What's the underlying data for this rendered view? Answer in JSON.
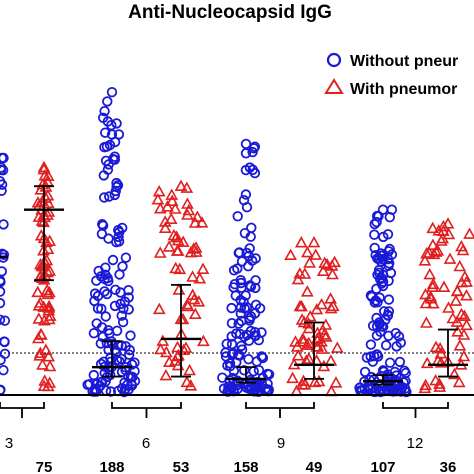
{
  "chart_data": {
    "type": "scatter",
    "title": "Anti-Nucleocapsid IgG",
    "legend": [
      {
        "name": "Without pneur",
        "marker": "circle",
        "color": "#1a1ad6"
      },
      {
        "name": "With pneumor",
        "marker": "triangle",
        "color": "#e02020"
      }
    ],
    "legend_position": "top-right",
    "threshold_line": "dotted",
    "groups": [
      {
        "time_label": "3",
        "without_n": "",
        "with_n": "75"
      },
      {
        "time_label": "6",
        "without_n": "188",
        "with_n": "53"
      },
      {
        "time_label": "9",
        "without_n": "158",
        "with_n": "49"
      },
      {
        "time_label": "12",
        "without_n": "107",
        "with_n": "36"
      }
    ],
    "series": [
      {
        "name": "Without pneur",
        "median": [
          2.9,
          0.55,
          0.3,
          0.25
        ],
        "q1": [
          null,
          0.35,
          0.22,
          0.18
        ],
        "q3": [
          null,
          1.1,
          0.55,
          0.38
        ],
        "max_visible": [
          5.0,
          6.4,
          5.3,
          3.9
        ]
      },
      {
        "name": "With pneumor",
        "median": [
          3.9,
          1.15,
          0.6,
          0.6
        ],
        "q1": [
          2.4,
          0.35,
          0.3,
          0.35
        ],
        "q3": [
          4.4,
          2.3,
          1.5,
          1.35
        ],
        "max_visible": [
          4.8,
          4.4,
          3.2,
          3.6
        ]
      }
    ]
  },
  "colors": {
    "without": "#1a1ad6",
    "with": "#e02020",
    "bar": "#000000"
  }
}
